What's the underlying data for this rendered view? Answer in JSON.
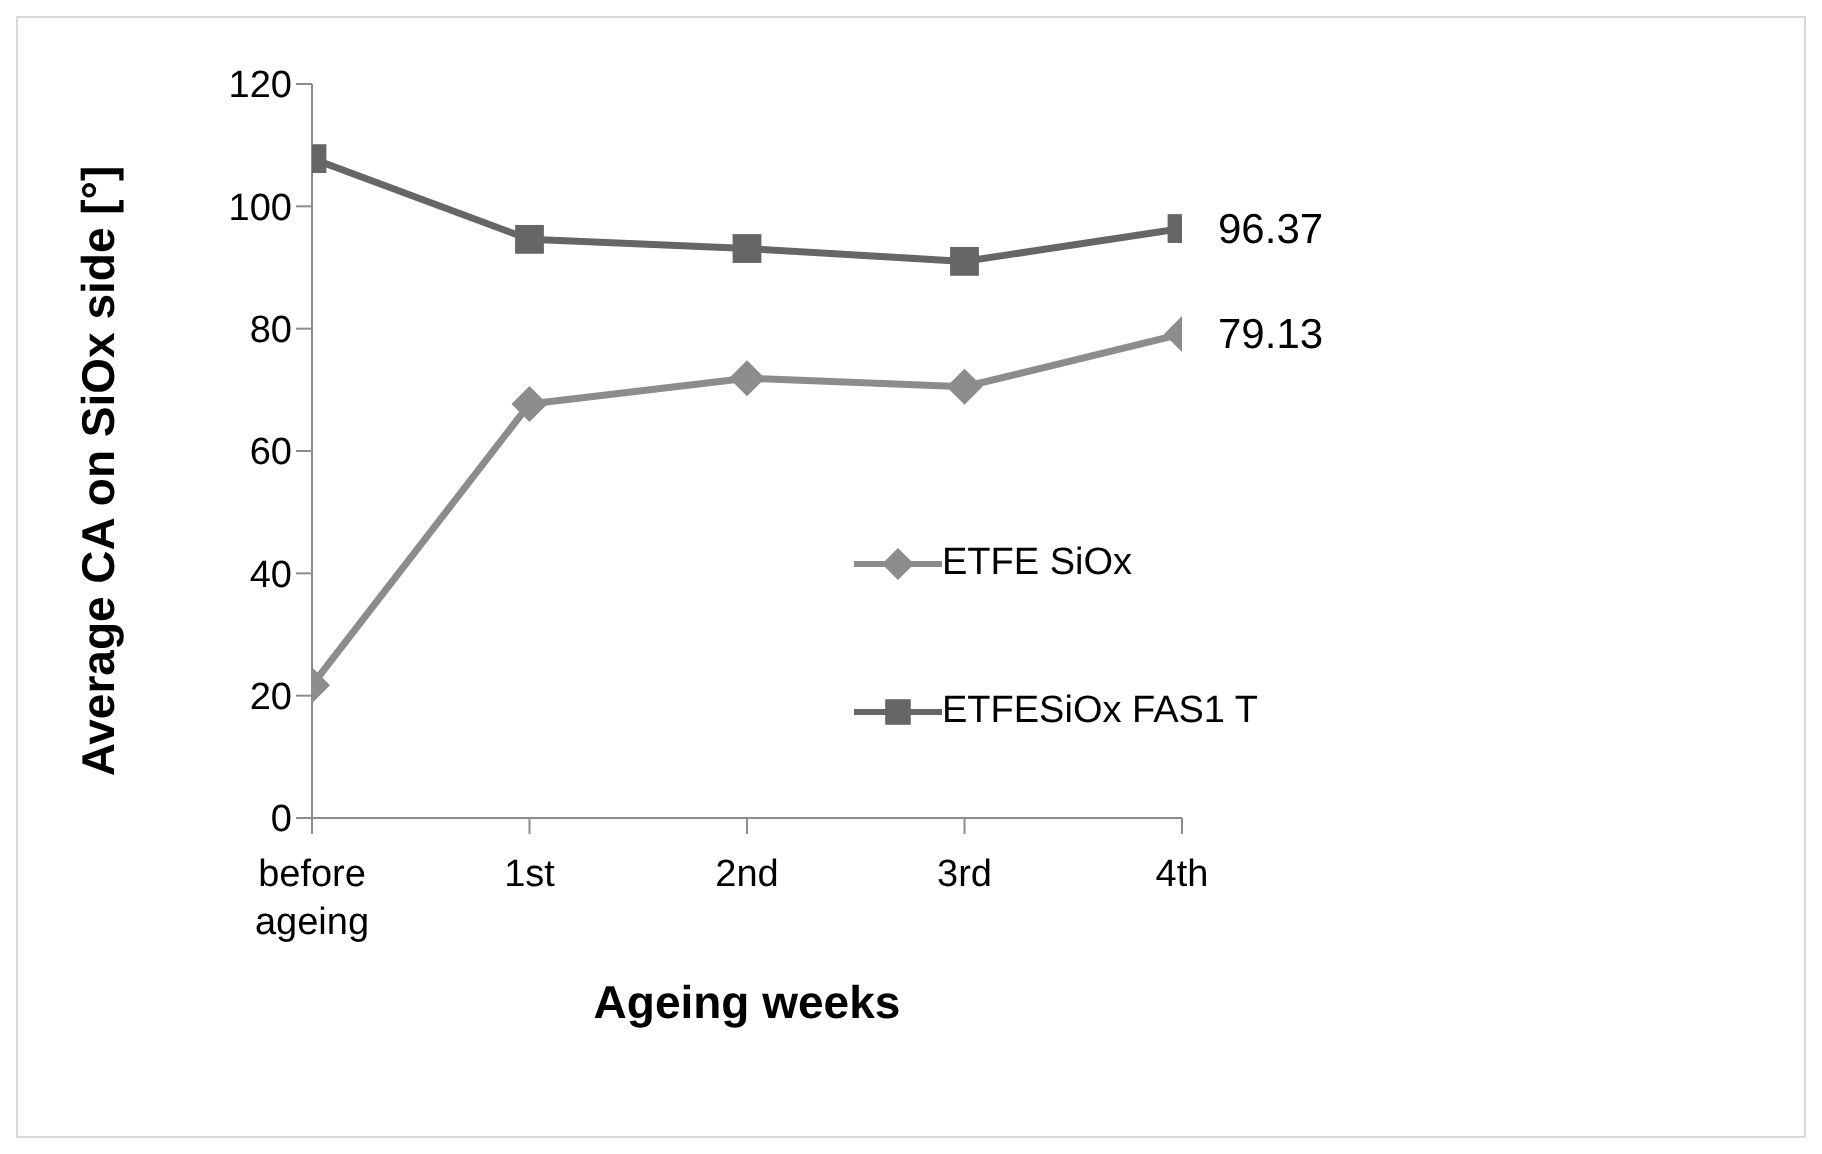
{
  "chart_data": {
    "type": "line",
    "xlabel": "Ageing weeks",
    "ylabel": "Average CA on SiOx side [°]",
    "categories": [
      "before ageing",
      "1st",
      "2nd",
      "3rd",
      "4th"
    ],
    "series": [
      {
        "name": "ETFE SiOx",
        "color": "#8c8c8c",
        "marker": "diamond",
        "values": [
          21.7,
          67.7,
          71.9,
          70.5,
          79.13
        ],
        "value_labels": [
          null,
          null,
          null,
          null,
          "79.13"
        ]
      },
      {
        "name": "ETFESiOx FAS1 T",
        "color": "#666666",
        "marker": "square",
        "values": [
          107.8,
          94.6,
          93.1,
          91.0,
          96.37
        ],
        "value_labels": [
          null,
          null,
          null,
          null,
          "96.37"
        ]
      }
    ],
    "ylim": [
      0,
      120
    ],
    "yticks": [
      0,
      20,
      40,
      60,
      80,
      100,
      120
    ],
    "grid": false,
    "legend": "right"
  }
}
